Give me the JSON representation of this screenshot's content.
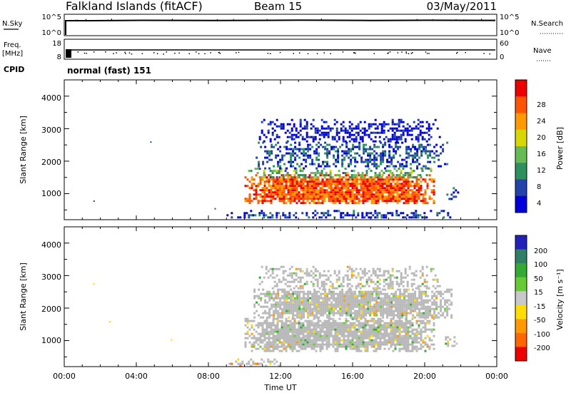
{
  "header": {
    "station": "Falkland Islands (fitACF)",
    "beam": "Beam 15",
    "date": "03/May/2011"
  },
  "nsky_panel": {
    "left_label": "N.Sky",
    "left_ticks": [
      "10^5",
      "10^0"
    ],
    "right_label": "N.Search",
    "right_ticks": [
      "10^5",
      "10^0"
    ]
  },
  "freq_panel": {
    "left_label_1": "Freq.",
    "left_label_2": "[MHz]",
    "left_ticks": [
      "18",
      "8"
    ],
    "right_label": "Nave",
    "right_ticks": [
      "60",
      "0"
    ]
  },
  "cpid": {
    "label": "CPID",
    "value": "normal (fast) 151"
  },
  "colors": {
    "power_scale": [
      "#0000dd",
      "#2244aa",
      "#2f8f5f",
      "#66bb55",
      "#d8d800",
      "#ff9900",
      "#ff5500",
      "#ee0000"
    ],
    "velocity_scale": [
      "#2222bb",
      "#2f7f66",
      "#33aa33",
      "#66cc33",
      "#c8c8c8",
      "#ffdd00",
      "#ff9900",
      "#ff6600",
      "#ee0000"
    ],
    "ground_scatter": "#b8b8b8"
  },
  "chart_data": [
    {
      "type": "heatmap",
      "name": "power-panel",
      "ylabel": "Slant Range [km]",
      "yticks": [
        "1000",
        "2000",
        "3000",
        "4000"
      ],
      "ylim": [
        200,
        4500
      ],
      "xlim_hours": [
        0,
        24
      ],
      "colorbar_label": "Power [dB]",
      "colorbar_ticks": [
        "4",
        "8",
        "12",
        "16",
        "20",
        "24",
        "28"
      ],
      "regions": [
        {
          "t0": 10.0,
          "t1": 20.5,
          "r0": 700,
          "r1": 1600,
          "level": 28
        },
        {
          "t0": 10.2,
          "t1": 20.3,
          "r0": 1500,
          "r1": 1800,
          "level": 14
        },
        {
          "t0": 10.5,
          "t1": 21.2,
          "r0": 1800,
          "r1": 2600,
          "level": 8
        },
        {
          "t0": 10.8,
          "t1": 20.8,
          "r0": 2600,
          "r1": 3300,
          "level": 4
        },
        {
          "t0": 9.0,
          "t1": 21.5,
          "r0": 250,
          "r1": 500,
          "level": 6
        },
        {
          "t0": 21.2,
          "t1": 21.8,
          "r0": 800,
          "r1": 1200,
          "level": 8
        }
      ]
    },
    {
      "type": "heatmap",
      "name": "velocity-panel",
      "ylabel": "Slant Range [km]",
      "yticks": [
        "1000",
        "2000",
        "3000",
        "4000"
      ],
      "ylim": [
        200,
        4500
      ],
      "xlim_hours": [
        0,
        24
      ],
      "xlabel": "Time UT",
      "xticks": [
        "00:00",
        "04:00",
        "08:00",
        "12:00",
        "16:00",
        "20:00",
        "00:00"
      ],
      "colorbar_label": "Velocity [m s⁻¹]",
      "colorbar_ticks": [
        "200",
        "100",
        "50",
        "15",
        "-15",
        "-50",
        "-100",
        "-200"
      ],
      "regions": [
        {
          "t0": 10.0,
          "t1": 20.5,
          "r0": 700,
          "r1": 1700,
          "level": 0
        },
        {
          "t0": 10.5,
          "t1": 21.5,
          "r0": 1700,
          "r1": 2600,
          "level": 0
        },
        {
          "t0": 10.8,
          "t1": 20.8,
          "r0": 2600,
          "r1": 3300,
          "level": 0
        },
        {
          "t0": 9.0,
          "t1": 12.0,
          "r0": 250,
          "r1": 450,
          "level": -60
        },
        {
          "t0": 21.0,
          "t1": 21.8,
          "r0": 800,
          "r1": 1200,
          "level": 0
        }
      ]
    }
  ]
}
